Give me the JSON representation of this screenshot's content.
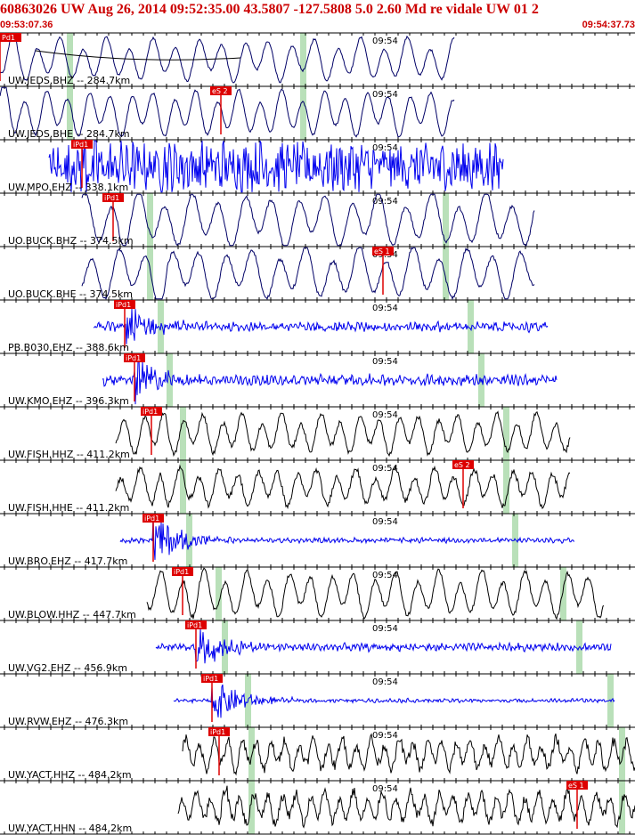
{
  "header": {
    "title": "60863026 UW Aug 26, 2014 09:52:35.00   43.5807 -127.5808  5.0 2.60 Md re vidale UW 01   2",
    "start_time": "09:53:07.36",
    "end_time": "09:54:37.73"
  },
  "colors": {
    "header": "#cc0000",
    "pick": "#dd0000",
    "green_marker": "#b9e0b9",
    "blue_trace": "#0000ee",
    "navy_trace": "#000066",
    "black_trace": "#000000"
  },
  "time_label": "09:54",
  "traces": [
    {
      "label": "UW.JEDS.BHZ -- 284.7km",
      "color": "navy",
      "amp": 0.3,
      "noise": 0.02,
      "per": 26,
      "start": 0,
      "end": 510,
      "onset": 0,
      "greens": [
        78,
        340
      ],
      "pick": {
        "label": "Pd1",
        "x": 0
      },
      "curve": true
    },
    {
      "label": "UW.JEDS.BHE -- 284.7km",
      "color": "navy",
      "amp": 0.32,
      "noise": 0.02,
      "per": 24,
      "start": 0,
      "end": 510,
      "onset": 0,
      "greens": [
        78,
        340
      ],
      "pick": {
        "label": "eS 2",
        "x": 248
      }
    },
    {
      "label": "UW.MPO.EHZ -- 338.1km",
      "color": "blue",
      "amp": 0.14,
      "noise": 0.38,
      "per": 6,
      "start": 55,
      "end": 565,
      "onset": 92,
      "greens": [],
      "pick": {
        "label": "iPd1",
        "x": 92
      }
    },
    {
      "label": "UO.BUCK.BHZ -- 374.5km",
      "color": "navy",
      "amp": 0.38,
      "noise": 0.03,
      "per": 30,
      "start": 92,
      "end": 600,
      "onset": 127,
      "greens": [
        168,
        500
      ],
      "pick": {
        "label": "iPd1",
        "x": 127
      }
    },
    {
      "label": "UO.BUCK.BHE -- 374.5km",
      "color": "navy",
      "amp": 0.36,
      "noise": 0.03,
      "per": 30,
      "start": 92,
      "end": 600,
      "onset": 170,
      "greens": [
        168,
        500
      ],
      "pick": {
        "label": "eS 1",
        "x": 430
      }
    },
    {
      "label": "PB.B030.EHZ -- 388.6km",
      "color": "blue",
      "amp": 0.04,
      "noise": 0.06,
      "per": 5,
      "start": 105,
      "end": 615,
      "onset": 140,
      "greens": [
        180,
        528
      ],
      "pick": {
        "label": "iPd1",
        "x": 140
      },
      "burst": 0.45
    },
    {
      "label": "UW.KMO.EHZ -- 396.3km",
      "color": "blue",
      "amp": 0.04,
      "noise": 0.07,
      "per": 5,
      "start": 115,
      "end": 625,
      "onset": 151,
      "greens": [
        190,
        540
      ],
      "pick": {
        "label": "iPd1",
        "x": 151
      },
      "burst": 0.45
    },
    {
      "label": "UW.FISH.HHZ -- 411.2km",
      "color": "black",
      "amp": 0.28,
      "noise": 0.04,
      "per": 22,
      "start": 130,
      "end": 640,
      "onset": 170,
      "greens": [
        205,
        568
      ],
      "pick": {
        "label": "iPd1",
        "x": 170
      }
    },
    {
      "label": "UW.FISH.HHE -- 411.2km",
      "color": "black",
      "amp": 0.26,
      "noise": 0.05,
      "per": 22,
      "start": 130,
      "end": 640,
      "onset": 170,
      "greens": [
        205,
        568
      ],
      "pick": {
        "label": "eS 2",
        "x": 520
      }
    },
    {
      "label": "UW.BRO.EHZ -- 417.7km",
      "color": "blue",
      "amp": 0.02,
      "noise": 0.03,
      "per": 5,
      "start": 135,
      "end": 645,
      "onset": 172,
      "greens": [
        212,
        578
      ],
      "pick": {
        "label": "iPd1",
        "x": 172
      },
      "burst": 0.5
    },
    {
      "label": "UW.BLOW.HHZ -- 447.7km",
      "color": "black",
      "amp": 0.32,
      "noise": 0.04,
      "per": 24,
      "start": 165,
      "end": 678,
      "onset": 205,
      "greens": [
        245,
        632
      ],
      "pick": {
        "label": "iPd1",
        "x": 205
      }
    },
    {
      "label": "UW.VG2.EHZ -- 456.9km",
      "color": "blue",
      "amp": 0.03,
      "noise": 0.05,
      "per": 5,
      "start": 175,
      "end": 686,
      "onset": 220,
      "greens": [
        252,
        650
      ],
      "pick": {
        "label": "iPd1",
        "x": 220
      },
      "burst": 0.5
    },
    {
      "label": "UW.RVW.EHZ -- 476.3km",
      "color": "blue",
      "amp": 0.015,
      "noise": 0.025,
      "per": 5,
      "start": 195,
      "end": 690,
      "onset": 238,
      "greens": [
        278,
        685
      ],
      "pick": {
        "label": "iPd1",
        "x": 238
      },
      "burst": 0.45
    },
    {
      "label": "UW.YACT.HHZ -- 484.2km",
      "color": "black",
      "amp": 0.22,
      "noise": 0.09,
      "per": 16,
      "start": 205,
      "end": 713,
      "onset": 246,
      "greens": [
        282,
        698
      ],
      "pick": {
        "label": "iPd1",
        "x": 246
      }
    },
    {
      "label": "UW.YACT.HHN -- 484.2km",
      "color": "black",
      "amp": 0.22,
      "noise": 0.09,
      "per": 16,
      "start": 200,
      "end": 713,
      "onset": 246,
      "greens": [
        282,
        698
      ],
      "pick": {
        "label": "eS 1",
        "x": 648
      }
    }
  ]
}
